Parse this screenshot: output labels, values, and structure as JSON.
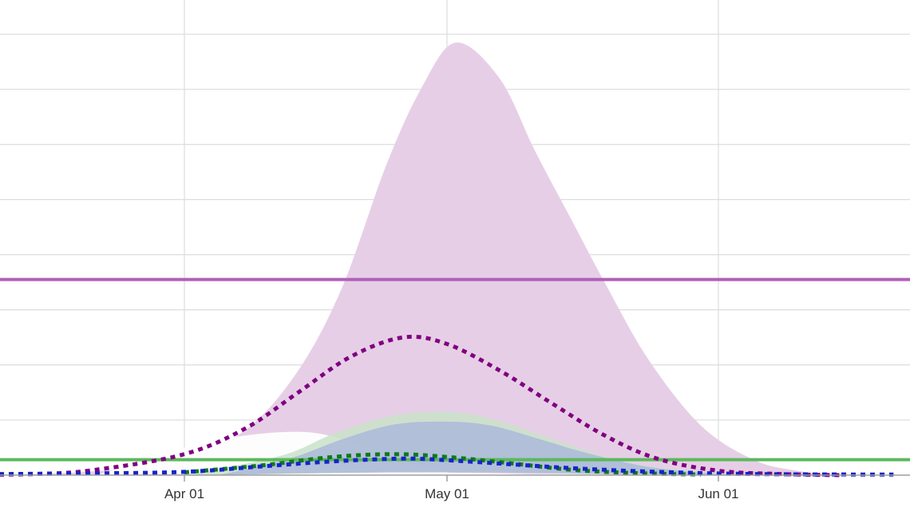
{
  "chart_data": {
    "type": "area",
    "x_axis": {
      "range": [
        "2020-03-01",
        "2020-06-21"
      ],
      "ticks": [
        {
          "date": "2020-04-01",
          "label": "Apr 01"
        },
        {
          "date": "2020-05-01",
          "label": "May 01"
        },
        {
          "date": "2020-06-01",
          "label": "Jun 01"
        }
      ]
    },
    "y_axis": {
      "range": [
        0,
        8
      ],
      "tick_labels_visible": false,
      "gridlines": 8
    },
    "grid": true,
    "colors": {
      "purple": "#800080",
      "purple_fill": "#e6cfe6",
      "purple_line": "#b15fb9",
      "green_line": "#5cb85c",
      "green_fill": "#c9e2c9",
      "blue_fill": "#aab6dc",
      "blue_line": "#1624c8",
      "green_dot": "#0f7a1a",
      "grid": "#dddddd",
      "axis": "#9e9e9e"
    },
    "horizontal_lines": [
      {
        "id": "purple-threshold",
        "y": 3.55,
        "color": "#b15fb9"
      },
      {
        "id": "green-threshold",
        "y": 0.28,
        "color": "#5cb85c"
      }
    ],
    "series": [
      {
        "id": "purple-band",
        "kind": "band",
        "color": "#e6cfe6",
        "points": [
          {
            "x": "2020-03-01",
            "lo": 0,
            "hi": 0
          },
          {
            "x": "2020-03-15",
            "lo": 0,
            "hi": 0.02
          },
          {
            "x": "2020-03-25",
            "lo": 0,
            "hi": 0.12
          },
          {
            "x": "2020-04-01",
            "lo": 0.01,
            "hi": 0.35
          },
          {
            "x": "2020-04-08",
            "lo": 0.02,
            "hi": 0.82
          },
          {
            "x": "2020-04-14",
            "lo": 0.04,
            "hi": 1.9
          },
          {
            "x": "2020-04-19",
            "lo": 0.04,
            "hi": 3.4
          },
          {
            "x": "2020-04-24",
            "lo": 0.04,
            "hi": 5.6
          },
          {
            "x": "2020-04-28",
            "lo": 0.04,
            "hi": 7.0
          },
          {
            "x": "2020-05-02",
            "lo": 0.04,
            "hi": 7.85
          },
          {
            "x": "2020-05-07",
            "lo": 0.03,
            "hi": 7.2
          },
          {
            "x": "2020-05-11",
            "lo": 0.02,
            "hi": 5.9
          },
          {
            "x": "2020-05-15",
            "lo": 0.02,
            "hi": 4.7
          },
          {
            "x": "2020-05-19",
            "lo": 0.01,
            "hi": 3.5
          },
          {
            "x": "2020-05-24",
            "lo": 0.01,
            "hi": 2.1
          },
          {
            "x": "2020-05-30",
            "lo": 0,
            "hi": 0.9
          },
          {
            "x": "2020-06-05",
            "lo": 0,
            "hi": 0.28
          },
          {
            "x": "2020-06-10",
            "lo": 0,
            "hi": 0.08
          },
          {
            "x": "2020-06-15",
            "lo": 0,
            "hi": 0
          },
          {
            "x": "2020-06-21",
            "lo": 0,
            "hi": 0
          }
        ]
      },
      {
        "id": "white-band",
        "kind": "band",
        "color": "#ffffff",
        "points": [
          {
            "x": "2020-03-22",
            "lo": 0,
            "hi": 0
          },
          {
            "x": "2020-04-01",
            "lo": 0.02,
            "hi": 0.5
          },
          {
            "x": "2020-04-08",
            "lo": 0.03,
            "hi": 0.72
          },
          {
            "x": "2020-04-15",
            "lo": 0.03,
            "hi": 0.78
          },
          {
            "x": "2020-04-20",
            "lo": 0.03,
            "hi": 0.6
          },
          {
            "x": "2020-04-25",
            "lo": 0.02,
            "hi": 0.3
          },
          {
            "x": "2020-05-01",
            "lo": 0.01,
            "hi": 0.05
          },
          {
            "x": "2020-05-05",
            "lo": 0,
            "hi": 0
          }
        ]
      },
      {
        "id": "green-band",
        "kind": "band",
        "color": "#c9e2c9",
        "points": [
          {
            "x": "2020-04-01",
            "lo": 0,
            "hi": 0
          },
          {
            "x": "2020-04-12",
            "lo": 0.02,
            "hi": 0.35
          },
          {
            "x": "2020-04-18",
            "lo": 0.04,
            "hi": 0.75
          },
          {
            "x": "2020-04-24",
            "lo": 0.05,
            "hi": 1.05
          },
          {
            "x": "2020-04-29",
            "lo": 0.05,
            "hi": 1.15
          },
          {
            "x": "2020-05-04",
            "lo": 0.05,
            "hi": 1.1
          },
          {
            "x": "2020-05-09",
            "lo": 0.04,
            "hi": 0.88
          },
          {
            "x": "2020-05-15",
            "lo": 0.03,
            "hi": 0.55
          },
          {
            "x": "2020-05-22",
            "lo": 0.02,
            "hi": 0.22
          },
          {
            "x": "2020-05-30",
            "lo": 0.01,
            "hi": 0.06
          },
          {
            "x": "2020-06-05",
            "lo": 0,
            "hi": 0
          }
        ]
      },
      {
        "id": "blue-band",
        "kind": "band",
        "color": "#aab6dc",
        "points": [
          {
            "x": "2020-04-05",
            "lo": 0,
            "hi": 0
          },
          {
            "x": "2020-04-13",
            "lo": 0.03,
            "hi": 0.3
          },
          {
            "x": "2020-04-19",
            "lo": 0.04,
            "hi": 0.65
          },
          {
            "x": "2020-04-25",
            "lo": 0.05,
            "hi": 0.92
          },
          {
            "x": "2020-05-01",
            "lo": 0.05,
            "hi": 0.97
          },
          {
            "x": "2020-05-06",
            "lo": 0.05,
            "hi": 0.9
          },
          {
            "x": "2020-05-11",
            "lo": 0.04,
            "hi": 0.68
          },
          {
            "x": "2020-05-17",
            "lo": 0.03,
            "hi": 0.4
          },
          {
            "x": "2020-05-24",
            "lo": 0.02,
            "hi": 0.15
          },
          {
            "x": "2020-06-01",
            "lo": 0,
            "hi": 0.02
          },
          {
            "x": "2020-06-05",
            "lo": 0,
            "hi": 0
          }
        ]
      },
      {
        "id": "purple-dotted",
        "kind": "dotted",
        "color": "#800080",
        "points": [
          {
            "x": "2020-03-01",
            "y": 0
          },
          {
            "x": "2020-03-15",
            "y": 0.02
          },
          {
            "x": "2020-03-22",
            "y": 0.1
          },
          {
            "x": "2020-04-01",
            "y": 0.38
          },
          {
            "x": "2020-04-08",
            "y": 0.85
          },
          {
            "x": "2020-04-14",
            "y": 1.5
          },
          {
            "x": "2020-04-20",
            "y": 2.15
          },
          {
            "x": "2020-04-26",
            "y": 2.5
          },
          {
            "x": "2020-05-01",
            "y": 2.38
          },
          {
            "x": "2020-05-07",
            "y": 1.9
          },
          {
            "x": "2020-05-13",
            "y": 1.3
          },
          {
            "x": "2020-05-19",
            "y": 0.72
          },
          {
            "x": "2020-05-25",
            "y": 0.3
          },
          {
            "x": "2020-06-01",
            "y": 0.08
          },
          {
            "x": "2020-06-08",
            "y": 0.02
          },
          {
            "x": "2020-06-15",
            "y": 0
          }
        ]
      },
      {
        "id": "green-dotted",
        "kind": "dotted",
        "color": "#0f7a1a",
        "points": [
          {
            "x": "2020-04-01",
            "y": 0.05
          },
          {
            "x": "2020-04-10",
            "y": 0.18
          },
          {
            "x": "2020-04-18",
            "y": 0.33
          },
          {
            "x": "2020-04-25",
            "y": 0.38
          },
          {
            "x": "2020-05-01",
            "y": 0.33
          },
          {
            "x": "2020-05-08",
            "y": 0.22
          },
          {
            "x": "2020-05-15",
            "y": 0.1
          },
          {
            "x": "2020-05-22",
            "y": 0.04
          },
          {
            "x": "2020-05-30",
            "y": 0.01
          }
        ]
      },
      {
        "id": "blue-dotted",
        "kind": "dotted",
        "color": "#1624c8",
        "points": [
          {
            "x": "2020-03-01",
            "y": 0.01
          },
          {
            "x": "2020-03-20",
            "y": 0.03
          },
          {
            "x": "2020-04-01",
            "y": 0.06
          },
          {
            "x": "2020-04-10",
            "y": 0.16
          },
          {
            "x": "2020-04-18",
            "y": 0.25
          },
          {
            "x": "2020-04-26",
            "y": 0.3
          },
          {
            "x": "2020-05-01",
            "y": 0.27
          },
          {
            "x": "2020-05-08",
            "y": 0.2
          },
          {
            "x": "2020-05-16",
            "y": 0.12
          },
          {
            "x": "2020-05-25",
            "y": 0.06
          },
          {
            "x": "2020-06-05",
            "y": 0.02
          },
          {
            "x": "2020-06-21",
            "y": 0.01
          }
        ]
      }
    ]
  }
}
